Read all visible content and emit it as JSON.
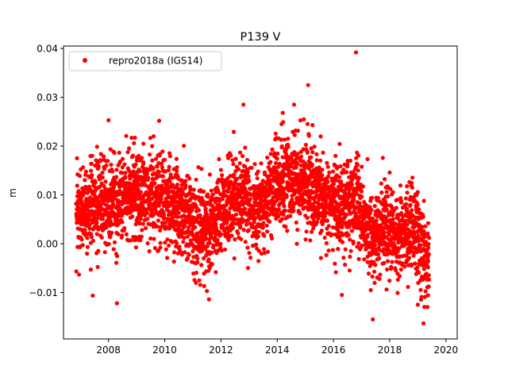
{
  "chart_data": {
    "type": "scatter",
    "title": "P139 V",
    "xlabel": "",
    "ylabel": "m",
    "xlim": [
      2006.4,
      2020.4
    ],
    "ylim": [
      -0.0195,
      0.0405
    ],
    "x_ticks": [
      2008,
      2010,
      2012,
      2014,
      2016,
      2018,
      2020
    ],
    "x_tick_labels": [
      "2008",
      "2010",
      "2012",
      "2014",
      "2016",
      "2018",
      "2020"
    ],
    "y_ticks": [
      -0.01,
      0.0,
      0.01,
      0.02,
      0.03,
      0.04
    ],
    "y_tick_labels": [
      "−0.01",
      "0.00",
      "0.01",
      "0.02",
      "0.03",
      "0.04"
    ],
    "grid": false,
    "legend": {
      "placement": "upper-left"
    },
    "series": [
      {
        "name": "repro2018a (IGS14)",
        "color": "#ff0000",
        "marker": "circle",
        "trend": [
          [
            2006.9,
            0.006
          ],
          [
            2007.3,
            0.0075
          ],
          [
            2007.8,
            0.0085
          ],
          [
            2008.3,
            0.009
          ],
          [
            2008.8,
            0.0105
          ],
          [
            2009.3,
            0.011
          ],
          [
            2009.8,
            0.0095
          ],
          [
            2010.3,
            0.0075
          ],
          [
            2010.8,
            0.005
          ],
          [
            2011.2,
            0.002
          ],
          [
            2011.6,
            0.003
          ],
          [
            2012.0,
            0.0075
          ],
          [
            2012.4,
            0.0085
          ],
          [
            2012.8,
            0.0105
          ],
          [
            2013.2,
            0.006
          ],
          [
            2013.6,
            0.009
          ],
          [
            2014.0,
            0.0125
          ],
          [
            2014.4,
            0.013
          ],
          [
            2014.8,
            0.0135
          ],
          [
            2015.2,
            0.011
          ],
          [
            2015.6,
            0.0095
          ],
          [
            2016.0,
            0.0085
          ],
          [
            2016.4,
            0.0075
          ],
          [
            2016.8,
            0.009
          ],
          [
            2017.1,
            0.003
          ],
          [
            2017.4,
            0.001
          ],
          [
            2017.8,
            0.0045
          ],
          [
            2018.2,
            0.001
          ],
          [
            2018.6,
            0.0025
          ],
          [
            2019.0,
            0.0025
          ],
          [
            2019.3,
            -0.004
          ]
        ],
        "noise_sd": 0.0045,
        "n_points": 3600,
        "outliers": [
          [
            2016.8,
            0.0392
          ],
          [
            2015.1,
            0.0325
          ],
          [
            2008.3,
            -0.0122
          ],
          [
            2016.3,
            -0.0105
          ],
          [
            2017.4,
            -0.0155
          ],
          [
            2019.2,
            -0.0163
          ],
          [
            2012.8,
            0.0285
          ],
          [
            2014.6,
            0.0285
          ],
          [
            2008.0,
            0.0253
          ],
          [
            2009.8,
            0.0252
          ],
          [
            2011.5,
            -0.0097
          ],
          [
            2019.0,
            -0.0125
          ]
        ],
        "x_range": [
          2006.85,
          2019.4
        ]
      }
    ]
  }
}
